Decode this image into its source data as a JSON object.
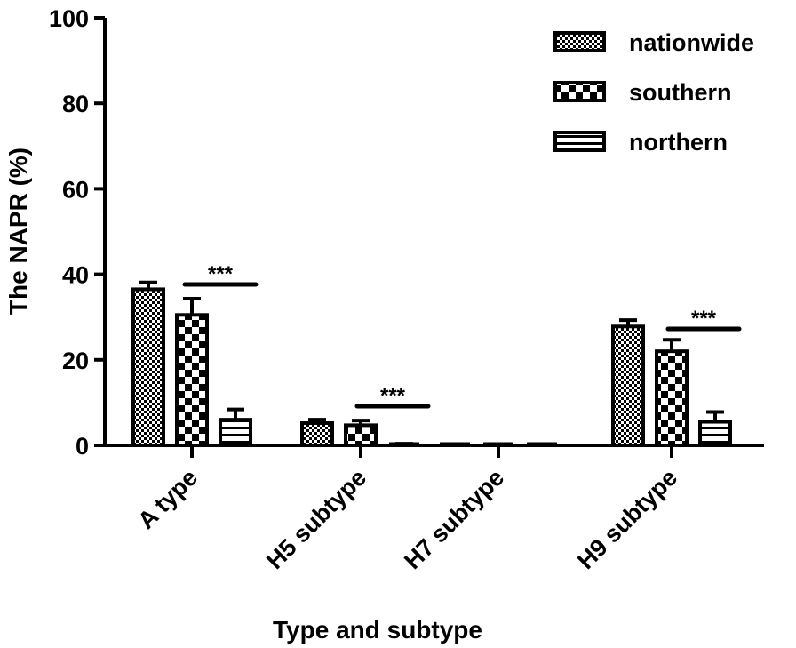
{
  "chart_data": {
    "type": "bar",
    "title": "",
    "xlabel": "Type and subtype",
    "ylabel": "The NAPR (%)",
    "ylim": [
      0,
      100
    ],
    "yticks": [
      0,
      20,
      40,
      60,
      80,
      100
    ],
    "grid": false,
    "legend_position": "top-right",
    "categories": [
      "A type",
      "H5 subtype",
      "H7 subtype",
      "H9 subtype"
    ],
    "series": [
      {
        "name": "nationwide",
        "pattern": "fine-checker",
        "values": [
          36.5,
          5.2,
          0.1,
          27.8
        ],
        "error": [
          1.6,
          0.8,
          0.1,
          1.5
        ]
      },
      {
        "name": "southern",
        "pattern": "coarse-checker",
        "values": [
          30.5,
          4.7,
          0.1,
          22.0
        ],
        "error": [
          3.8,
          1.1,
          0.1,
          2.7
        ]
      },
      {
        "name": "northern",
        "pattern": "horizontal-stripes",
        "values": [
          6.0,
          0.2,
          0.0,
          5.5
        ],
        "error": [
          2.4,
          0.2,
          0.0,
          2.3
        ]
      }
    ],
    "annotations": [
      {
        "text": "***",
        "category": "A type"
      },
      {
        "text": "***",
        "category": "H5 subtype"
      },
      {
        "text": "***",
        "category": "H9 subtype"
      }
    ]
  }
}
